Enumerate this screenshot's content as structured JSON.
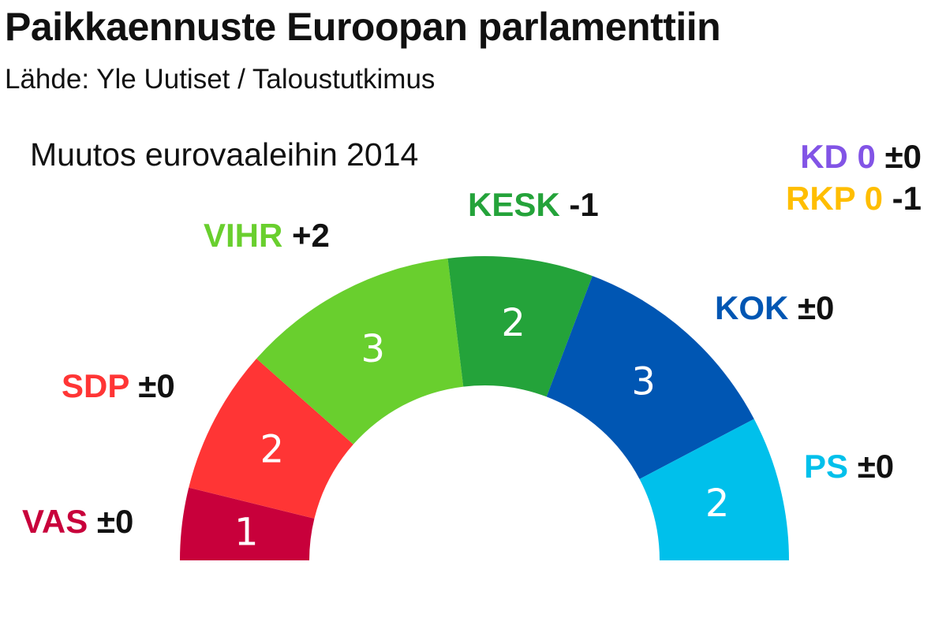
{
  "header": {
    "title": "Paikkaennuste Euroopan parlamenttiin",
    "source": "Lähde: Yle Uutiset / Taloustutkimus"
  },
  "chart_data": {
    "type": "pie",
    "subtitle": "Muutos eurovaaleihin 2014",
    "total_seats": 13,
    "parties": [
      {
        "name": "VAS",
        "seats": 1,
        "change": "±0",
        "color": "#c8003b"
      },
      {
        "name": "SDP",
        "seats": 2,
        "change": "±0",
        "color": "#ff3535"
      },
      {
        "name": "VIHR",
        "seats": 3,
        "change": "+2",
        "color": "#69cf2e"
      },
      {
        "name": "KESK",
        "seats": 2,
        "change": "-1",
        "color": "#24a33a"
      },
      {
        "name": "KOK",
        "seats": 3,
        "change": "±0",
        "color": "#0056b3"
      },
      {
        "name": "PS",
        "seats": 2,
        "change": "±0",
        "color": "#00c0eb"
      }
    ],
    "zero_seat_parties": [
      {
        "name": "KD",
        "seats": 0,
        "change": "±0",
        "color": "#8254e6"
      },
      {
        "name": "RKP",
        "seats": 0,
        "change": "-1",
        "color": "#ffbe00"
      }
    ]
  }
}
